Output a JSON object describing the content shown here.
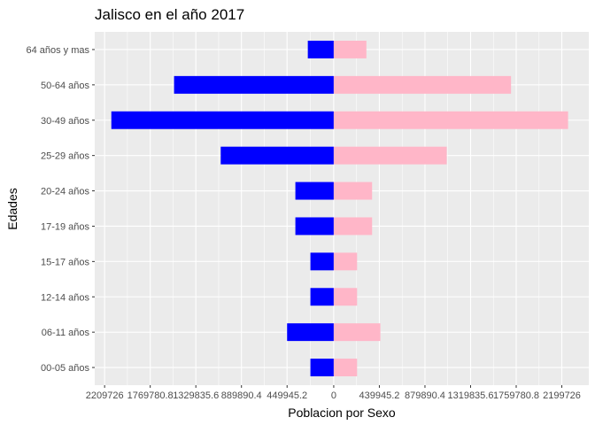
{
  "chart_data": {
    "type": "bar",
    "orientation": "horizontal",
    "layout": "population-pyramid",
    "title": "Jalisco en el año 2017",
    "xlabel": "Poblacion por Sexo",
    "ylabel": "Edades",
    "categories": [
      "00-05 años",
      "06-11 años",
      "12-14 años",
      "15-17 años",
      "17-19 años",
      "20-24 años",
      "25-29 años",
      "30-49 años",
      "50-64 años",
      "64 años y mas"
    ],
    "series": [
      {
        "color": "#0000FF",
        "side": "left",
        "values": [
          225000,
          450000,
          225000,
          225000,
          370000,
          370000,
          1090000,
          2145000,
          1540000,
          250000
        ]
      },
      {
        "color": "#FFB6C8",
        "side": "right",
        "values": [
          225000,
          450000,
          225000,
          225000,
          370000,
          370000,
          1090000,
          2260000,
          1710000,
          315000
        ]
      }
    ],
    "xlim": [
      -2305000,
      2460000
    ],
    "xticks": [
      -2209726,
      -1769780.8,
      -1329835.6,
      -889890.4,
      -449945.2,
      0,
      439945.2,
      879890.4,
      1319835.6,
      1759780.8,
      2199726
    ],
    "xtick_labels": [
      "2209726",
      "1769780.8",
      "1329835.6",
      "889890.4",
      "449945.2",
      "0",
      "439945.2",
      "879890.4",
      "1319835.6",
      "1759780.8",
      "2199726"
    ],
    "grid": true,
    "background": "#EBEBEB",
    "gridline_color": "#FFFFFF"
  }
}
